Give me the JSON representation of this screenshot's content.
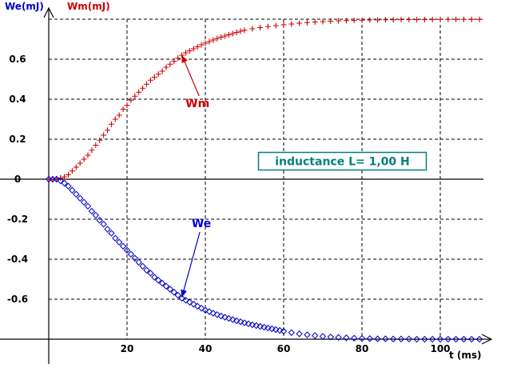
{
  "chart_data": {
    "type": "scatter",
    "title": "",
    "xlabel": "t (ms)",
    "ylabels": [
      "We(mJ)",
      "Wm(mJ)"
    ],
    "xlim": [
      0,
      110
    ],
    "ylim": [
      -0.8,
      0.8
    ],
    "x_ticks": [
      20,
      40,
      60,
      80,
      100
    ],
    "y_ticks": [
      0.6,
      0.4,
      0.2,
      0,
      -0.2,
      -0.4,
      -0.6
    ],
    "x_tick_labels": [
      "20",
      "40",
      "60",
      "80",
      "100"
    ],
    "y_tick_labels": [
      "0.6",
      "0.4",
      "0.2",
      "0",
      "-0.2",
      "-0.4",
      "-0.6"
    ],
    "grid": true,
    "colors": {
      "We": "#0000cc",
      "Wm": "#cc0000",
      "note": "#008080"
    },
    "series": [
      {
        "name": "Wm",
        "marker": "plus",
        "color": "#cc0000",
        "x": [
          0,
          1,
          2,
          3,
          4,
          5,
          6,
          7,
          8,
          9,
          10,
          11,
          12,
          13,
          14,
          15,
          16,
          17,
          18,
          19,
          20,
          21,
          22,
          23,
          24,
          25,
          26,
          27,
          28,
          29,
          30,
          31,
          32,
          33,
          34,
          35,
          36,
          37,
          38,
          39,
          40,
          41,
          42,
          43,
          44,
          45,
          46,
          47,
          48,
          49,
          50,
          52,
          54,
          56,
          58,
          60,
          62,
          64,
          66,
          68,
          70,
          72,
          74,
          76,
          78,
          80,
          82,
          84,
          86,
          88,
          90,
          92,
          94,
          96,
          98,
          100,
          102,
          104,
          106,
          108,
          110
        ],
        "y": [
          0.0,
          0.0,
          0.002,
          0.006,
          0.012,
          0.022,
          0.041,
          0.06,
          0.08,
          0.1,
          0.12,
          0.145,
          0.17,
          0.195,
          0.22,
          0.245,
          0.275,
          0.3,
          0.32,
          0.35,
          0.37,
          0.395,
          0.415,
          0.435,
          0.455,
          0.475,
          0.495,
          0.51,
          0.525,
          0.54,
          0.56,
          0.575,
          0.59,
          0.605,
          0.62,
          0.632,
          0.642,
          0.652,
          0.662,
          0.672,
          0.68,
          0.688,
          0.696,
          0.703,
          0.71,
          0.716,
          0.722,
          0.728,
          0.734,
          0.74,
          0.745,
          0.752,
          0.758,
          0.763,
          0.768,
          0.772,
          0.776,
          0.78,
          0.783,
          0.786,
          0.788,
          0.79,
          0.792,
          0.793,
          0.794,
          0.795,
          0.796,
          0.796,
          0.797,
          0.797,
          0.798,
          0.798,
          0.798,
          0.798,
          0.798,
          0.799,
          0.799,
          0.799,
          0.799,
          0.799,
          0.799
        ]
      },
      {
        "name": "We",
        "marker": "diamond",
        "color": "#0000cc",
        "x": [
          0,
          1,
          2,
          3,
          4,
          5,
          6,
          7,
          8,
          9,
          10,
          11,
          12,
          13,
          14,
          15,
          16,
          17,
          18,
          19,
          20,
          21,
          22,
          23,
          24,
          25,
          26,
          27,
          28,
          29,
          30,
          31,
          32,
          33,
          34,
          35,
          36,
          37,
          38,
          39,
          40,
          41,
          42,
          43,
          44,
          45,
          46,
          47,
          48,
          49,
          50,
          51,
          52,
          53,
          54,
          55,
          56,
          57,
          58,
          59,
          60,
          62,
          64,
          66,
          68,
          70,
          72,
          74,
          76,
          78,
          80,
          82,
          84,
          86,
          88,
          90,
          92,
          94,
          96,
          98,
          100,
          102,
          104,
          106,
          108,
          110
        ],
        "y": [
          0.0,
          0.0,
          0.0,
          -0.008,
          -0.02,
          -0.035,
          -0.055,
          -0.075,
          -0.095,
          -0.115,
          -0.135,
          -0.16,
          -0.18,
          -0.205,
          -0.225,
          -0.25,
          -0.27,
          -0.295,
          -0.315,
          -0.335,
          -0.355,
          -0.375,
          -0.395,
          -0.415,
          -0.435,
          -0.455,
          -0.47,
          -0.49,
          -0.505,
          -0.52,
          -0.535,
          -0.55,
          -0.565,
          -0.58,
          -0.595,
          -0.605,
          -0.615,
          -0.625,
          -0.635,
          -0.645,
          -0.655,
          -0.662,
          -0.67,
          -0.677,
          -0.684,
          -0.69,
          -0.696,
          -0.702,
          -0.708,
          -0.713,
          -0.718,
          -0.723,
          -0.728,
          -0.732,
          -0.736,
          -0.74,
          -0.744,
          -0.748,
          -0.752,
          -0.756,
          -0.76,
          -0.767,
          -0.773,
          -0.778,
          -0.782,
          -0.786,
          -0.789,
          -0.791,
          -0.793,
          -0.795,
          -0.796,
          -0.797,
          -0.798,
          -0.798,
          -0.799,
          -0.799,
          -0.799,
          -0.8,
          -0.8,
          -0.8,
          -0.8,
          -0.8,
          -0.8,
          -0.8,
          -0.8,
          -0.8
        ]
      }
    ],
    "annotations": [
      {
        "text": "Wm",
        "color": "#cc0000",
        "point": [
          34,
          0.62
        ],
        "label_at": [
          38,
          0.36
        ]
      },
      {
        "text": "We",
        "color": "#0000cc",
        "point": [
          34,
          -0.59
        ],
        "label_at": [
          39,
          -0.24
        ]
      },
      {
        "text": "inductance L= 1,00 H",
        "color": "#008080",
        "label_at": [
          75,
          0.09
        ]
      }
    ]
  }
}
